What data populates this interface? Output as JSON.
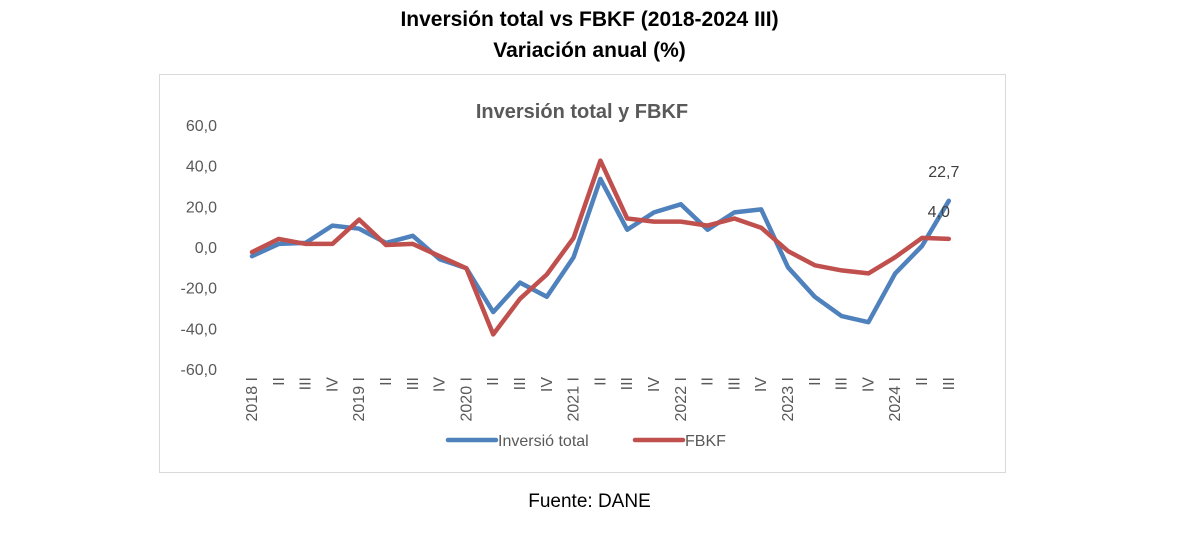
{
  "page": {
    "title_line1": "Inversión total vs FBKF (2018-2024 III)",
    "title_line2": "Variación anual (%)",
    "source": "Fuente: DANE"
  },
  "chart_data": {
    "type": "line",
    "title": "Inversión total y FBKF",
    "ylim": [
      -60,
      60
    ],
    "yticks": [
      60,
      40,
      20,
      0,
      -20,
      -40,
      -60
    ],
    "ytick_labels": [
      "60,0",
      "40,0",
      "20,0",
      "0,0",
      "-20,0",
      "-40,0",
      "-60,0"
    ],
    "categories": [
      "2018 I",
      "II",
      "III",
      "IV",
      "2019 I",
      "II",
      "III",
      "IV",
      "2020 I",
      "II",
      "III",
      "IV",
      "2021 I",
      "II",
      "III",
      "IV",
      "2022 I",
      "II",
      "III",
      "IV",
      "2023 I",
      "II",
      "III",
      "IV",
      "2024 I",
      "II",
      "III"
    ],
    "series": [
      {
        "name": "Inversió total",
        "color": "#4f81bd",
        "values": [
          -4.5,
          1.5,
          2.0,
          10.5,
          9.0,
          2.0,
          5.5,
          -6.0,
          -10.5,
          -32.0,
          -17.5,
          -24.5,
          -5.0,
          33.5,
          8.5,
          17.0,
          21.0,
          8.5,
          17.0,
          18.5,
          -10.0,
          -24.5,
          -34.0,
          -37.0,
          -13.0,
          0.5,
          22.7
        ]
      },
      {
        "name": "FBKF",
        "color": "#c0504d",
        "values": [
          -2.5,
          4.0,
          1.5,
          1.5,
          13.5,
          1.0,
          1.5,
          -4.5,
          -10.5,
          -43.0,
          -25.5,
          -13.5,
          4.5,
          42.5,
          14.0,
          12.5,
          12.5,
          10.5,
          14.0,
          9.5,
          -2.0,
          -9.0,
          -11.5,
          -13.0,
          -5.0,
          4.5,
          4.0
        ]
      }
    ],
    "data_labels": [
      {
        "series": "Inversió total",
        "index": 26,
        "text": "22,7"
      },
      {
        "series": "FBKF",
        "index": 26,
        "text": "4,0"
      }
    ],
    "legend_position": "bottom",
    "grid": false
  }
}
